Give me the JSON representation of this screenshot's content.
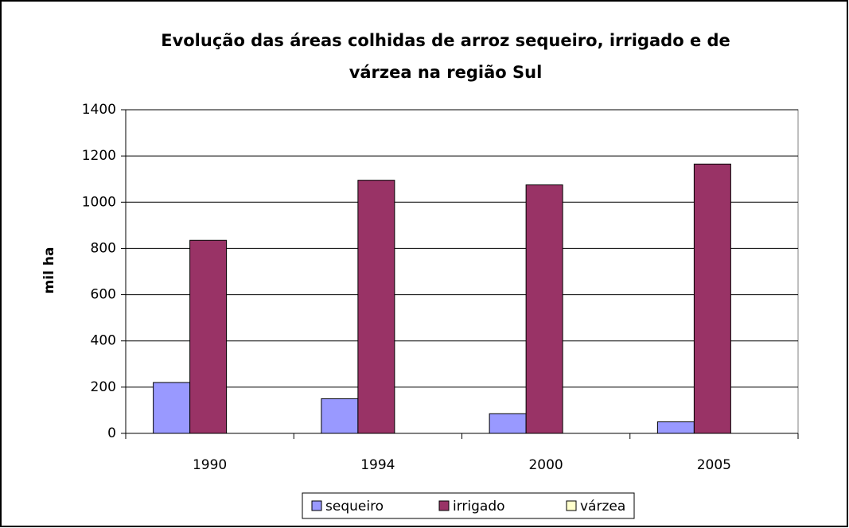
{
  "chart_data": {
    "type": "bar",
    "title": [
      "Evolução das áreas colhidas de arroz sequeiro, irrigado e de",
      "várzea na região Sul"
    ],
    "y_label": "mil ha",
    "categories": [
      "1990",
      "1994",
      "2000",
      "2005"
    ],
    "series": [
      {
        "name": "sequeiro",
        "color": "#9999ff",
        "values": [
          220,
          150,
          85,
          50
        ]
      },
      {
        "name": "irrigado",
        "color": "#993366",
        "values": [
          835,
          1095,
          1075,
          1165
        ]
      },
      {
        "name": "várzea",
        "color": "#ffffcc",
        "values": [
          0,
          0,
          0,
          0
        ]
      }
    ],
    "ylim": [
      0,
      1400
    ],
    "yticks": [
      0,
      200,
      400,
      600,
      800,
      1000,
      1200,
      1400
    ],
    "grid": true,
    "legend": "bottom"
  }
}
